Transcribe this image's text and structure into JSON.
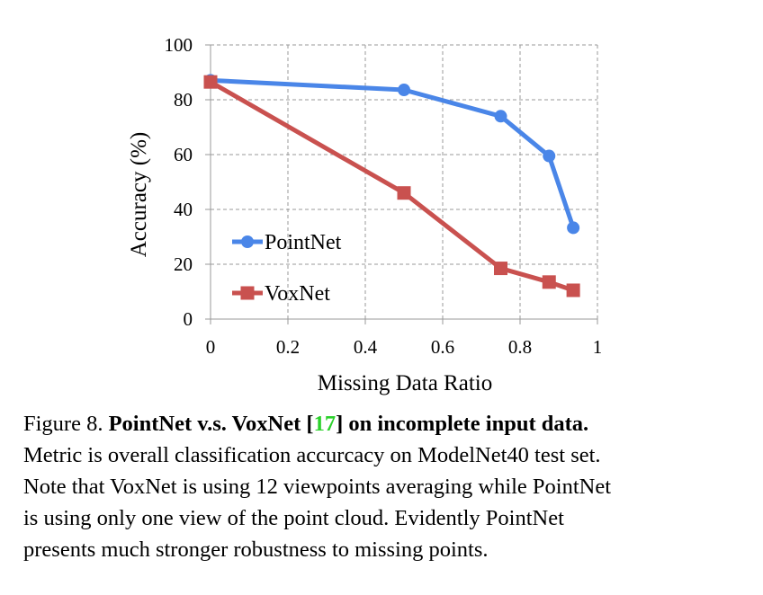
{
  "chart_data": {
    "type": "line",
    "xlabel": "Missing Data Ratio",
    "ylabel": "Accuracy (%)",
    "xlim": [
      0,
      1
    ],
    "ylim": [
      0,
      100
    ],
    "xticks": [
      "0",
      "0.2",
      "0.4",
      "0.6",
      "0.8",
      "1"
    ],
    "yticks": [
      "0",
      "20",
      "40",
      "60",
      "80",
      "100"
    ],
    "grid": "dashed",
    "legend_position": "bottom-left",
    "series": [
      {
        "name": "PointNet",
        "color": "#4a86e8",
        "marker": "circle",
        "x": [
          0,
          0.5,
          0.75,
          0.875,
          0.9375
        ],
        "y": [
          87.1,
          83.6,
          74,
          59.5,
          33.3
        ]
      },
      {
        "name": "VoxNet",
        "color": "#c9514f",
        "marker": "square",
        "x": [
          0,
          0.5,
          0.75,
          0.875,
          0.9375
        ],
        "y": [
          86.5,
          46,
          18.5,
          13.5,
          10.5
        ]
      }
    ]
  },
  "caption": {
    "figure_label": "Figure 8.",
    "bold_title_pre": "PointNet v.s.  VoxNet [",
    "ref_number": "17",
    "bold_title_post": "] on incomplete input data.",
    "line2": "Metric is overall classification accurcacy on ModelNet40 test set.",
    "line3": "Note that VoxNet is using 12 viewpoints averaging while PointNet",
    "line4": "is using only one view of the point cloud.  Evidently PointNet",
    "line5": "presents much stronger robustness to missing points."
  }
}
